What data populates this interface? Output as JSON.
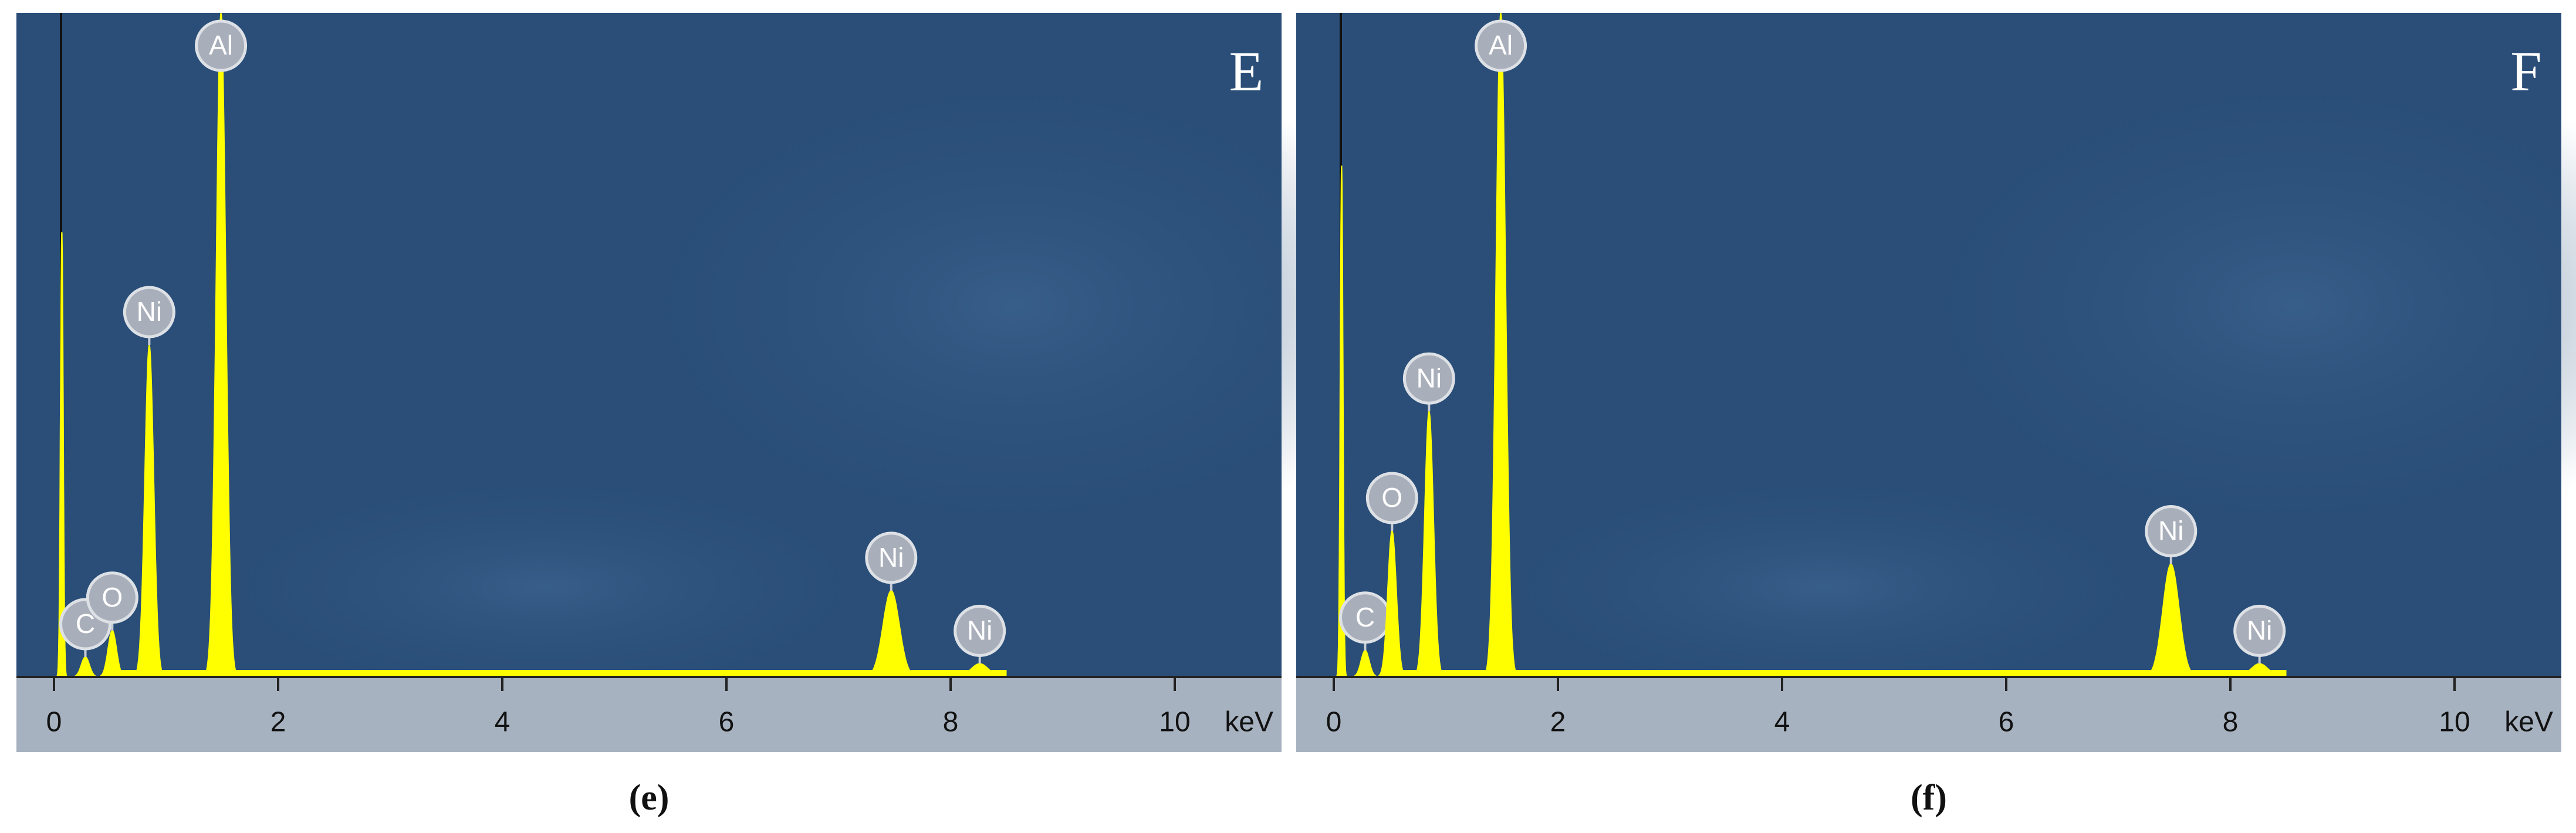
{
  "chart_data": [
    {
      "type": "spectrum",
      "panel_label": "E",
      "caption": "(e)",
      "x_label": "keV",
      "x": [
        0.07,
        0.28,
        0.52,
        0.85,
        1.49,
        7.47,
        8.26
      ],
      "values": [
        67,
        3,
        7,
        50,
        100,
        13,
        2
      ],
      "peak_labels": [
        null,
        "C",
        "O",
        "Ni",
        "Al",
        "Ni",
        "Ni"
      ],
      "color": "#ffff00",
      "xlim": [
        -0.2,
        11.0
      ],
      "xticks": [
        0,
        2,
        4,
        6,
        8,
        10
      ],
      "ylim": [
        0,
        100
      ]
    },
    {
      "type": "spectrum",
      "panel_label": "F",
      "caption": "(f)",
      "x_label": "keV",
      "x": [
        0.07,
        0.28,
        0.52,
        0.85,
        1.49,
        7.47,
        8.26
      ],
      "values": [
        77,
        4,
        22,
        40,
        100,
        17,
        2
      ],
      "peak_labels": [
        null,
        "C",
        "O",
        "Ni",
        "Al",
        "Ni",
        "Ni"
      ],
      "color": "#ffff00",
      "xlim": [
        -0.2,
        11.0
      ],
      "xticks": [
        0,
        2,
        4,
        6,
        8,
        10
      ],
      "ylim": [
        0,
        100
      ]
    }
  ]
}
